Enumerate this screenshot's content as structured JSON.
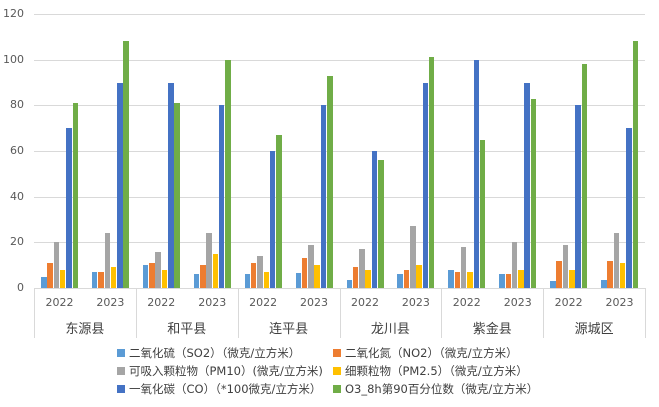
{
  "chart_data": {
    "type": "bar",
    "title": "",
    "xlabel": "",
    "ylabel": "",
    "ylim": [
      0,
      120
    ],
    "yticks": [
      0,
      20,
      40,
      60,
      80,
      100,
      120
    ],
    "grid": true,
    "legend_position": "bottom",
    "groups": [
      "东源县",
      "和平县",
      "连平县",
      "龙川县",
      "紫金县",
      "源城区"
    ],
    "subcategories": [
      "2022",
      "2023"
    ],
    "categories": [
      "东源县 2022",
      "东源县 2023",
      "和平县 2022",
      "和平县 2023",
      "连平县 2022",
      "连平县 2023",
      "龙川县 2022",
      "龙川县 2023",
      "紫金县 2022",
      "紫金县 2023",
      "源城区 2022",
      "源城区 2023"
    ],
    "series": [
      {
        "name": "二氧化硫（SO2）（微克/立方米）",
        "color": "#5B9BD5",
        "values": [
          5,
          7,
          10,
          6,
          6,
          6.5,
          3.5,
          6,
          8,
          6,
          3,
          3.5
        ]
      },
      {
        "name": "二氧化氮（NO2）（微克/立方米）",
        "color": "#ED7D31",
        "values": [
          11,
          7,
          11,
          10,
          11,
          13,
          9,
          8,
          7,
          6,
          12,
          12
        ]
      },
      {
        "name": "可吸入颗粒物（PM10）(微克/立方米)",
        "color": "#A5A5A5",
        "values": [
          20,
          24,
          16,
          24,
          14,
          19,
          17,
          27,
          18,
          20,
          19,
          24
        ]
      },
      {
        "name": "细颗粒物（PM2.5）（微克/立方米）",
        "color": "#FFC000",
        "values": [
          8,
          9,
          8,
          15,
          7,
          10,
          8,
          10,
          7,
          8,
          8,
          11
        ]
      },
      {
        "name": "一氧化碳（CO）（*100微克/立方米）",
        "color": "#4472C4",
        "values": [
          70,
          90,
          90,
          80,
          60,
          80,
          60,
          90,
          100,
          90,
          80,
          70
        ]
      },
      {
        "name": "O3_8h第90百分位数（微克/立方米）",
        "color": "#70AD47",
        "values": [
          81,
          108,
          81,
          100,
          67,
          93,
          56,
          101,
          65,
          83,
          98,
          108
        ]
      }
    ]
  },
  "legend": [
    {
      "label": "二氧化硫（SO2）（微克/立方米）",
      "color": "#5B9BD5"
    },
    {
      "label": "二氧化氮（NO2）（微克/立方米）",
      "color": "#ED7D31"
    },
    {
      "label": "可吸入颗粒物（PM10）(微克/立方米)",
      "color": "#A5A5A5"
    },
    {
      "label": "细颗粒物（PM2.5）（微克/立方米）",
      "color": "#FFC000"
    },
    {
      "label": "一氧化碳（CO）（*100微克/立方米）",
      "color": "#4472C4"
    },
    {
      "label": "O3_8h第90百分位数（微克/立方米）",
      "color": "#70AD47"
    }
  ]
}
